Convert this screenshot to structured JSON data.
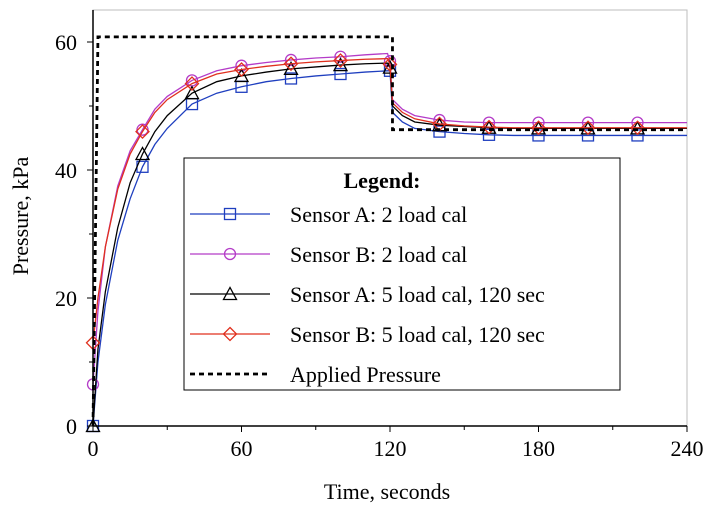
{
  "chart_data": {
    "type": "line",
    "title": "",
    "xlabel": "Time, seconds",
    "ylabel": "Pressure, kPa",
    "xlim": [
      0,
      240
    ],
    "ylim": [
      0,
      65
    ],
    "xticks": [
      0,
      60,
      120,
      180,
      240
    ],
    "yticks": [
      0,
      20,
      40,
      60
    ],
    "xtick_labels": [
      "0",
      "60",
      "120",
      "180",
      "240"
    ],
    "ytick_labels": [
      "0",
      "20",
      "40",
      "60"
    ],
    "grid": false,
    "legend_title": "Legend:",
    "legend_position": "center",
    "series": [
      {
        "name": "Sensor A: 2 load cal",
        "color": "#1f3fbf",
        "marker": "square",
        "x": [
          0,
          2,
          5,
          10,
          15,
          20,
          25,
          30,
          40,
          50,
          60,
          70,
          80,
          90,
          100,
          110,
          119,
          120,
          121,
          125,
          130,
          140,
          150,
          160,
          170,
          180,
          190,
          200,
          210,
          220,
          240
        ],
        "y": [
          0,
          10,
          19,
          29,
          35.5,
          40.5,
          44,
          46.5,
          50.3,
          52,
          53,
          53.8,
          54.3,
          54.7,
          55,
          55.3,
          55.5,
          55.5,
          49,
          47.5,
          46.5,
          46,
          45.7,
          45.5,
          45.4,
          45.4,
          45.4,
          45.4,
          45.4,
          45.4,
          45.4
        ],
        "marker_x": [
          0,
          20,
          40,
          60,
          80,
          100,
          120,
          140,
          160,
          180,
          200,
          220
        ],
        "marker_y": [
          0,
          40.5,
          50.3,
          53,
          54.3,
          55,
          55.5,
          46,
          45.5,
          45.4,
          45.4,
          45.4
        ]
      },
      {
        "name": "Sensor B: 2 load cal",
        "color": "#b43cc8",
        "marker": "circle",
        "x": [
          0,
          2,
          5,
          10,
          15,
          20,
          25,
          30,
          40,
          50,
          60,
          70,
          80,
          90,
          100,
          110,
          119,
          120,
          121,
          125,
          130,
          140,
          150,
          160,
          170,
          180,
          190,
          200,
          210,
          220,
          240
        ],
        "y": [
          6.5,
          18,
          28,
          37.5,
          43,
          46.3,
          49.5,
          51.5,
          54,
          55.5,
          56.3,
          56.8,
          57.2,
          57.5,
          57.7,
          58,
          58.2,
          57,
          51,
          49.5,
          48.5,
          47.8,
          47.5,
          47.4,
          47.4,
          47.4,
          47.4,
          47.4,
          47.4,
          47.4,
          47.4
        ],
        "marker_x": [
          0,
          20,
          40,
          60,
          80,
          100,
          120,
          140,
          160,
          180,
          200,
          220
        ],
        "marker_y": [
          6.5,
          46.3,
          54,
          56.3,
          57.2,
          57.7,
          57,
          47.8,
          47.4,
          47.4,
          47.4,
          47.4
        ]
      },
      {
        "name": "Sensor A: 5 load cal, 120 sec",
        "color": "#000000",
        "marker": "triangle",
        "x": [
          0,
          2,
          5,
          10,
          15,
          20,
          25,
          30,
          40,
          50,
          60,
          70,
          80,
          90,
          100,
          110,
          119,
          120,
          121,
          125,
          130,
          140,
          150,
          160,
          170,
          180,
          190,
          200,
          210,
          220,
          240
        ],
        "y": [
          0,
          12,
          21,
          31,
          38,
          42.5,
          46,
          48.5,
          52,
          53.8,
          54.7,
          55.3,
          55.8,
          56.1,
          56.4,
          56.6,
          56.7,
          56,
          50,
          48.5,
          47.5,
          47,
          46.8,
          46.6,
          46.5,
          46.5,
          46.5,
          46.5,
          46.5,
          46.5,
          46.5
        ],
        "marker_x": [
          0,
          20,
          40,
          60,
          80,
          100,
          120,
          140,
          160,
          180,
          200,
          220
        ],
        "marker_y": [
          0,
          42.5,
          52,
          54.7,
          55.8,
          56.4,
          56,
          47,
          46.6,
          46.5,
          46.5,
          46.5
        ]
      },
      {
        "name": "Sensor B: 5 load cal, 120 sec",
        "color": "#e0301e",
        "marker": "diamond",
        "x": [
          0,
          2,
          5,
          10,
          15,
          20,
          25,
          30,
          40,
          50,
          60,
          70,
          80,
          90,
          100,
          110,
          119,
          120,
          121,
          125,
          130,
          140,
          150,
          160,
          170,
          180,
          190,
          200,
          210,
          220,
          240
        ],
        "y": [
          13,
          20,
          28,
          37,
          42.5,
          46,
          49,
          51,
          53.5,
          55,
          55.7,
          56.2,
          56.6,
          56.9,
          57.1,
          57.3,
          57.4,
          56.5,
          50.5,
          49,
          48,
          47.2,
          46.9,
          46.7,
          46.6,
          46.6,
          46.6,
          46.6,
          46.6,
          46.6,
          46.6
        ],
        "marker_x": [
          0,
          20,
          40,
          60,
          80,
          100,
          120,
          140,
          160,
          180,
          200,
          220
        ],
        "marker_y": [
          13,
          46,
          53.5,
          55.7,
          56.6,
          57.1,
          56.5,
          47.2,
          46.7,
          46.6,
          46.6,
          46.6
        ]
      },
      {
        "name": "Applied Pressure",
        "color": "#000000",
        "dashed": true,
        "x": [
          0,
          2,
          3,
          121,
          121,
          240
        ],
        "y": [
          0,
          60.8,
          60.8,
          60.8,
          46.3,
          46.3
        ]
      }
    ]
  }
}
